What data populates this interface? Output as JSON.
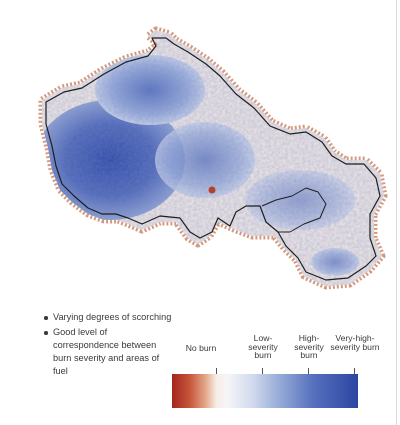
{
  "bullets": [
    "Varying degrees of scorching",
    "Good level of correspondence between burn severity and areas of fuel"
  ],
  "legend": {
    "classes": [
      {
        "label": "No burn",
        "color": "#f6eee8"
      },
      {
        "label": "Low-severity burn",
        "color": "#cfd8ec"
      },
      {
        "label": "High-severity burn",
        "color": "#5670bd"
      },
      {
        "label": "Very-high-severity burn",
        "color": "#2c45a2"
      }
    ],
    "scale_low_color": "#a4241c",
    "scale_high_color": "#2c45a2"
  },
  "map": {
    "perimeter_color": "#1e1e1e",
    "buffer_color": "#d49a80",
    "interior_light": "#f1e9e5",
    "interior_dark": "#3a57b0"
  }
}
